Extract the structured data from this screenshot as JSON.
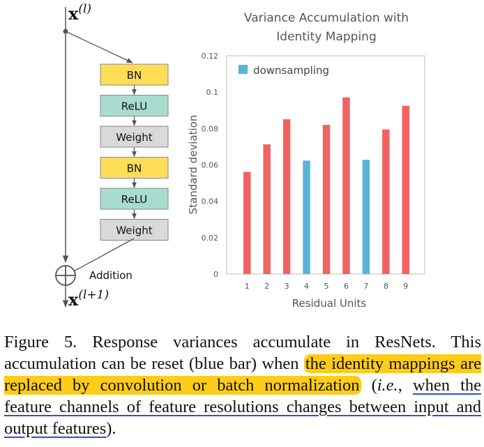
{
  "diagram": {
    "input_var": "x",
    "input_sup": "(l)",
    "output_var": "x",
    "output_sup": "(l+1)",
    "blocks": [
      "BN",
      "ReLU",
      "Weight",
      "BN",
      "ReLU",
      "Weight"
    ],
    "addition_label": "Addition",
    "colors": {
      "bn": "#ffdd57",
      "relu": "#a8dccf",
      "weight": "#d9d9d9"
    }
  },
  "chart_data": {
    "type": "bar",
    "title_line1": "Variance Accumulation with",
    "title_line2": "Identity Mapping",
    "xlabel": "Residual Units",
    "ylabel": "Standard deviation",
    "categories": [
      "1",
      "2",
      "3",
      "4",
      "5",
      "6",
      "7",
      "8",
      "9"
    ],
    "values": [
      0.0562,
      0.0713,
      0.0851,
      0.0624,
      0.082,
      0.0971,
      0.0628,
      0.0795,
      0.0925
    ],
    "downsampling": [
      false,
      false,
      false,
      true,
      false,
      false,
      true,
      false,
      false
    ],
    "ylim": [
      0,
      0.12
    ],
    "yticks": [
      "0",
      "0.02",
      "0.04",
      "0.06",
      "0.08",
      "0.1",
      "0.12"
    ],
    "legend": "downsampling",
    "legend_position": "top-left",
    "colors": {
      "normal": "#f16262",
      "downsampling": "#5ab4da"
    }
  },
  "caption": {
    "part1": "Figure 5.   Response variances accumulate in ResNets. This accumulation can be reset (blue bar) when ",
    "highlight": "the identity mappings are replaced by convolution or batch normalization",
    "part2": " (",
    "ie": "i.e.",
    "part3": ", ",
    "underlined": "when the feature channels of feature resolutions changes between input and output features",
    "part4": ")."
  }
}
